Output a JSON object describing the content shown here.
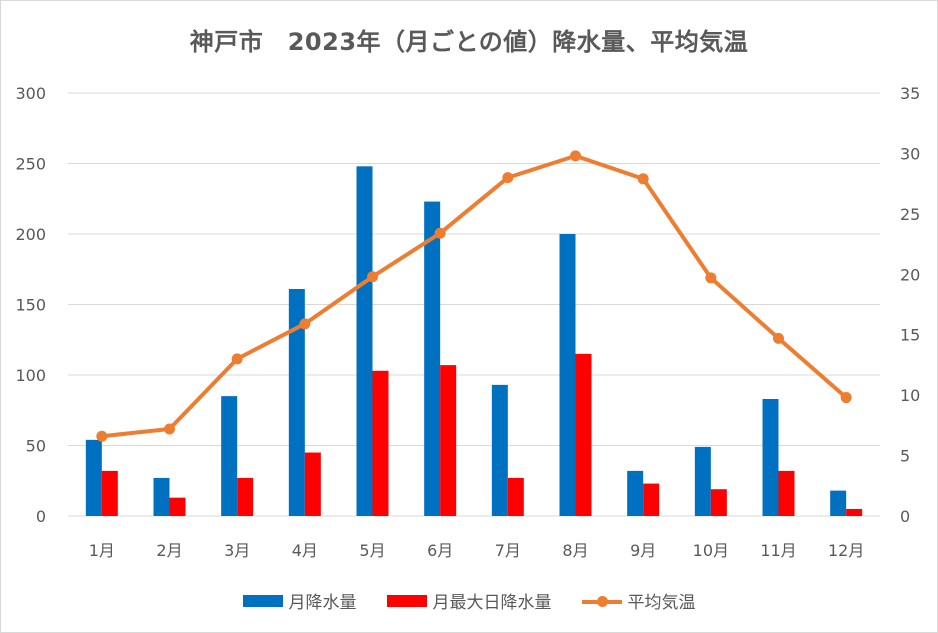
{
  "chart_data": {
    "type": "bar",
    "title": "神戸市　2023年（月ごとの値）降水量、平均気温",
    "categories": [
      "1月",
      "2月",
      "3月",
      "4月",
      "5月",
      "6月",
      "7月",
      "8月",
      "9月",
      "10月",
      "11月",
      "12月"
    ],
    "y_left": {
      "ticks": [
        "0",
        "50",
        "100",
        "150",
        "200",
        "250",
        "300"
      ],
      "ylim": [
        0,
        300
      ]
    },
    "y_right": {
      "ticks": [
        "0",
        "5",
        "10",
        "15",
        "20",
        "25",
        "30",
        "35"
      ],
      "ylim": [
        0,
        35
      ]
    },
    "grid": true,
    "legend_position": "bottom",
    "series": [
      {
        "name": "月降水量",
        "type": "bar",
        "axis": "left",
        "color": "#0070C0",
        "values": [
          54,
          27,
          85,
          161,
          248,
          223,
          93,
          200,
          32,
          49,
          83,
          18
        ]
      },
      {
        "name": "月最大日降水量",
        "type": "bar",
        "axis": "left",
        "color": "#FF0000",
        "values": [
          32,
          13,
          27,
          45,
          103,
          107,
          27,
          115,
          23,
          19,
          32,
          5
        ]
      },
      {
        "name": "平均気温",
        "type": "line",
        "axis": "right",
        "color": "#ED7D31",
        "values": [
          6.6,
          7.2,
          13.0,
          15.9,
          19.8,
          23.4,
          28.0,
          29.8,
          27.9,
          19.7,
          14.7,
          9.8
        ]
      }
    ]
  }
}
